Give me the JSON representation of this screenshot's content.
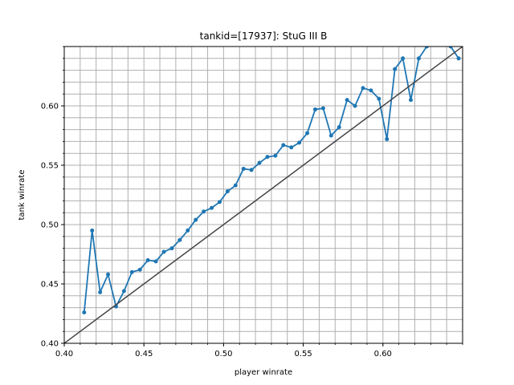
{
  "chart_data": {
    "type": "line",
    "title": "tankid=[17937]: StuG III B",
    "xlabel": "player winrate",
    "ylabel": "tank winrate",
    "xlim": [
      0.4,
      0.65
    ],
    "ylim": [
      0.4,
      0.65
    ],
    "xticks": [
      0.4,
      0.45,
      0.5,
      0.55,
      0.6
    ],
    "xtick_labels": [
      "0.40",
      "0.45",
      "0.50",
      "0.55",
      "0.60"
    ],
    "yticks": [
      0.4,
      0.45,
      0.5,
      0.55,
      0.6
    ],
    "ytick_labels": [
      "0.40",
      "0.45",
      "0.50",
      "0.55",
      "0.60"
    ],
    "grid": true,
    "minor_grid_step": 0.01,
    "series": [
      {
        "color": "#1f77b4",
        "marker": "circle",
        "x": [
          0.4125,
          0.4175,
          0.4225,
          0.4275,
          0.4325,
          0.4375,
          0.4425,
          0.4475,
          0.4525,
          0.4575,
          0.4625,
          0.4675,
          0.4725,
          0.4775,
          0.4825,
          0.4875,
          0.4925,
          0.4975,
          0.5025,
          0.5075,
          0.5125,
          0.5175,
          0.5225,
          0.5275,
          0.5325,
          0.5375,
          0.5425,
          0.5475,
          0.5525,
          0.5575,
          0.5625,
          0.5675,
          0.5725,
          0.5775,
          0.5825,
          0.5875,
          0.5925,
          0.5975,
          0.6025,
          0.6075,
          0.6125,
          0.6175,
          0.6225,
          0.6275,
          0.6325,
          0.6375,
          0.6425,
          0.6475
        ],
        "y": [
          0.426,
          0.495,
          0.443,
          0.458,
          0.431,
          0.444,
          0.46,
          0.462,
          0.47,
          0.469,
          0.477,
          0.48,
          0.487,
          0.495,
          0.504,
          0.511,
          0.514,
          0.519,
          0.528,
          0.533,
          0.547,
          0.546,
          0.552,
          0.557,
          0.558,
          0.567,
          0.565,
          0.569,
          0.577,
          0.597,
          0.598,
          0.575,
          0.582,
          0.605,
          0.6,
          0.615,
          0.613,
          0.606,
          0.572,
          0.631,
          0.64,
          0.605,
          0.64,
          0.65,
          0.655,
          0.655,
          0.65,
          0.64
        ]
      },
      {
        "color": "#444444",
        "marker": "none",
        "x": [
          0.4,
          0.65
        ],
        "y": [
          0.4,
          0.65
        ]
      }
    ]
  }
}
